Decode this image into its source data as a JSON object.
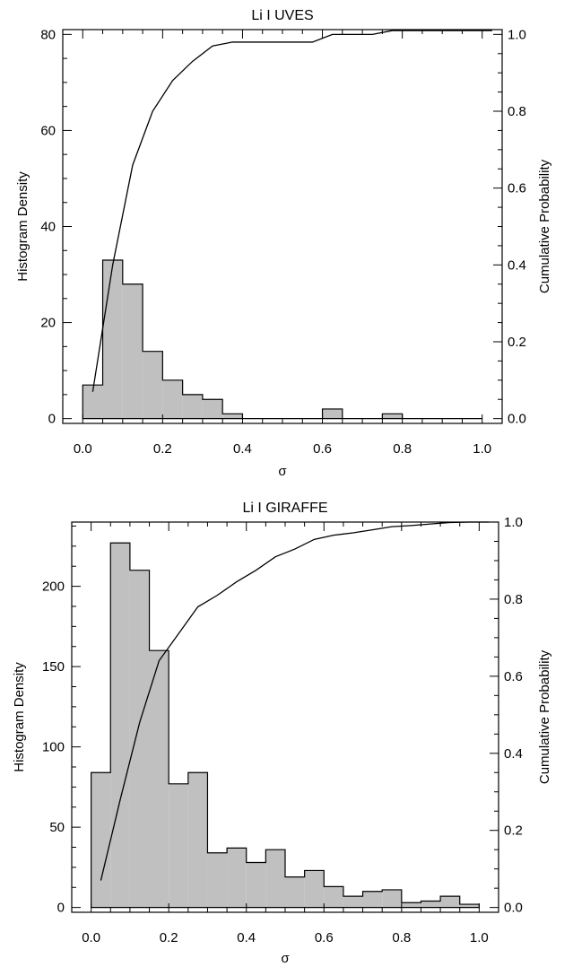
{
  "chart_data": [
    {
      "type": "bar",
      "title": "Li I UVES",
      "xlabel": "σ",
      "ylabel": "Histogram Density",
      "y2label": "Cumulative Probability",
      "xlim": [
        -0.05,
        1.05
      ],
      "ylim": [
        -1,
        81
      ],
      "y2lim": [
        -0.0125,
        1.0125
      ],
      "xticks": [
        0.0,
        0.2,
        0.4,
        0.6,
        0.8,
        1.0
      ],
      "xtick_labels": [
        "0.0",
        "0.2",
        "0.4",
        "0.6",
        "0.8",
        "1.0"
      ],
      "yticks": [
        0,
        20,
        40,
        60,
        80
      ],
      "ytick_labels": [
        "0",
        "20",
        "40",
        "60",
        "80"
      ],
      "y2ticks": [
        0.0,
        0.2,
        0.4,
        0.6,
        0.8,
        1.0
      ],
      "y2tick_labels": [
        "0.0",
        "0.2",
        "0.4",
        "0.6",
        "0.8",
        "1.0"
      ],
      "bin_edges": [
        0.0,
        0.05,
        0.1,
        0.15,
        0.2,
        0.25,
        0.3,
        0.35,
        0.4,
        0.45,
        0.5,
        0.55,
        0.6,
        0.65,
        0.7,
        0.75,
        0.8,
        0.85,
        0.9,
        0.95,
        1.0
      ],
      "values": [
        7,
        33,
        28,
        14,
        8,
        5,
        4,
        1,
        0,
        0,
        0,
        0,
        2,
        0,
        0,
        1,
        0,
        0,
        0,
        0
      ],
      "bar_color": "#c0c0c0",
      "cumulative": {
        "x": [
          0.025,
          0.075,
          0.125,
          0.175,
          0.225,
          0.275,
          0.325,
          0.375,
          0.425,
          0.475,
          0.525,
          0.575,
          0.625,
          0.675,
          0.725,
          0.775,
          0.825,
          0.875,
          0.925,
          0.975,
          1.025
        ],
        "y": [
          0.07,
          0.4,
          0.66,
          0.8,
          0.88,
          0.93,
          0.97,
          0.98,
          0.98,
          0.98,
          0.98,
          0.98,
          1.0,
          1.0,
          1.0,
          1.01,
          1.01,
          1.01,
          1.01,
          1.01,
          1.01
        ]
      }
    },
    {
      "type": "bar",
      "title": "Li I GIRAFFE",
      "xlabel": "σ",
      "ylabel": "Histogram Density",
      "y2label": "Cumulative Probability",
      "xlim": [
        -0.05,
        1.05
      ],
      "ylim": [
        -3,
        240
      ],
      "y2lim": [
        -0.0125,
        1.0
      ],
      "xticks": [
        0.0,
        0.2,
        0.4,
        0.6,
        0.8,
        1.0
      ],
      "xtick_labels": [
        "0.0",
        "0.2",
        "0.4",
        "0.6",
        "0.8",
        "1.0"
      ],
      "yticks": [
        0,
        50,
        100,
        150,
        200
      ],
      "ytick_labels": [
        "0",
        "50",
        "100",
        "150",
        "200"
      ],
      "y2ticks": [
        0.0,
        0.2,
        0.4,
        0.6,
        0.8,
        1.0
      ],
      "y2tick_labels": [
        "0.0",
        "0.2",
        "0.4",
        "0.6",
        "0.8",
        "1.0"
      ],
      "bin_edges": [
        0.0,
        0.05,
        0.1,
        0.15,
        0.2,
        0.25,
        0.3,
        0.35,
        0.4,
        0.45,
        0.5,
        0.55,
        0.6,
        0.65,
        0.7,
        0.75,
        0.8,
        0.85,
        0.9,
        0.95,
        1.0
      ],
      "values": [
        84,
        227,
        210,
        160,
        77,
        84,
        34,
        37,
        28,
        36,
        19,
        23,
        13,
        7,
        10,
        11,
        3,
        4,
        7,
        2
      ],
      "bar_color": "#c0c0c0",
      "cumulative": {
        "x": [
          0.025,
          0.075,
          0.125,
          0.175,
          0.225,
          0.275,
          0.325,
          0.375,
          0.425,
          0.475,
          0.525,
          0.575,
          0.625,
          0.675,
          0.725,
          0.775,
          0.825,
          0.875,
          0.925,
          0.975,
          1.025
        ],
        "y": [
          0.07,
          0.28,
          0.48,
          0.64,
          0.71,
          0.78,
          0.81,
          0.845,
          0.875,
          0.91,
          0.93,
          0.955,
          0.966,
          0.972,
          0.98,
          0.988,
          0.991,
          0.995,
          0.999,
          1.0,
          1.0
        ]
      }
    }
  ]
}
